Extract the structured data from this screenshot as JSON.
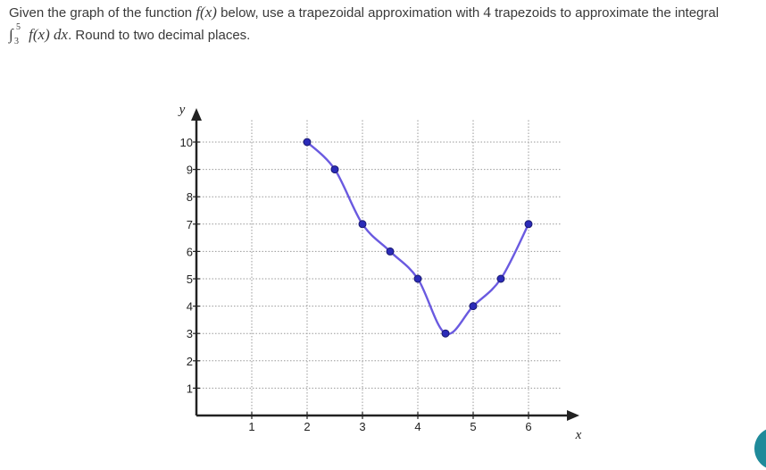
{
  "question": {
    "line1_pre": "Given the graph of the function ",
    "fx": "f(x)",
    "line1_mid": " below, use a trapezoidal approximation with ",
    "n": "4",
    "line1_post": " trapezoids to approximate the integral",
    "int_upper": "5",
    "int_lower": "3",
    "integrand": "f(x) dx",
    "line2_post": ". Round to two decimal places."
  },
  "chart_data": {
    "type": "line",
    "title": "",
    "xlabel": "x",
    "ylabel": "y",
    "xlim": [
      0,
      6.5
    ],
    "ylim": [
      0,
      10
    ],
    "x_ticks": [
      1,
      2,
      3,
      4,
      5,
      6
    ],
    "y_ticks": [
      1,
      2,
      3,
      4,
      5,
      6,
      7,
      8,
      9,
      10
    ],
    "grid": true,
    "series": [
      {
        "color": "#6a5ae0",
        "points": [
          {
            "x": 2,
            "y": 10
          },
          {
            "x": 2.5,
            "y": 9
          },
          {
            "x": 3,
            "y": 7
          },
          {
            "x": 3.5,
            "y": 6
          },
          {
            "x": 4,
            "y": 5
          },
          {
            "x": 4.5,
            "y": 3
          },
          {
            "x": 5,
            "y": 4
          },
          {
            "x": 5.5,
            "y": 5
          },
          {
            "x": 6,
            "y": 7
          }
        ]
      }
    ],
    "point_color": "#2b2bb8"
  },
  "colors": {
    "accent": "#1f8a9a",
    "curve": "#6a5ae0",
    "points": "#2b2bb8"
  }
}
